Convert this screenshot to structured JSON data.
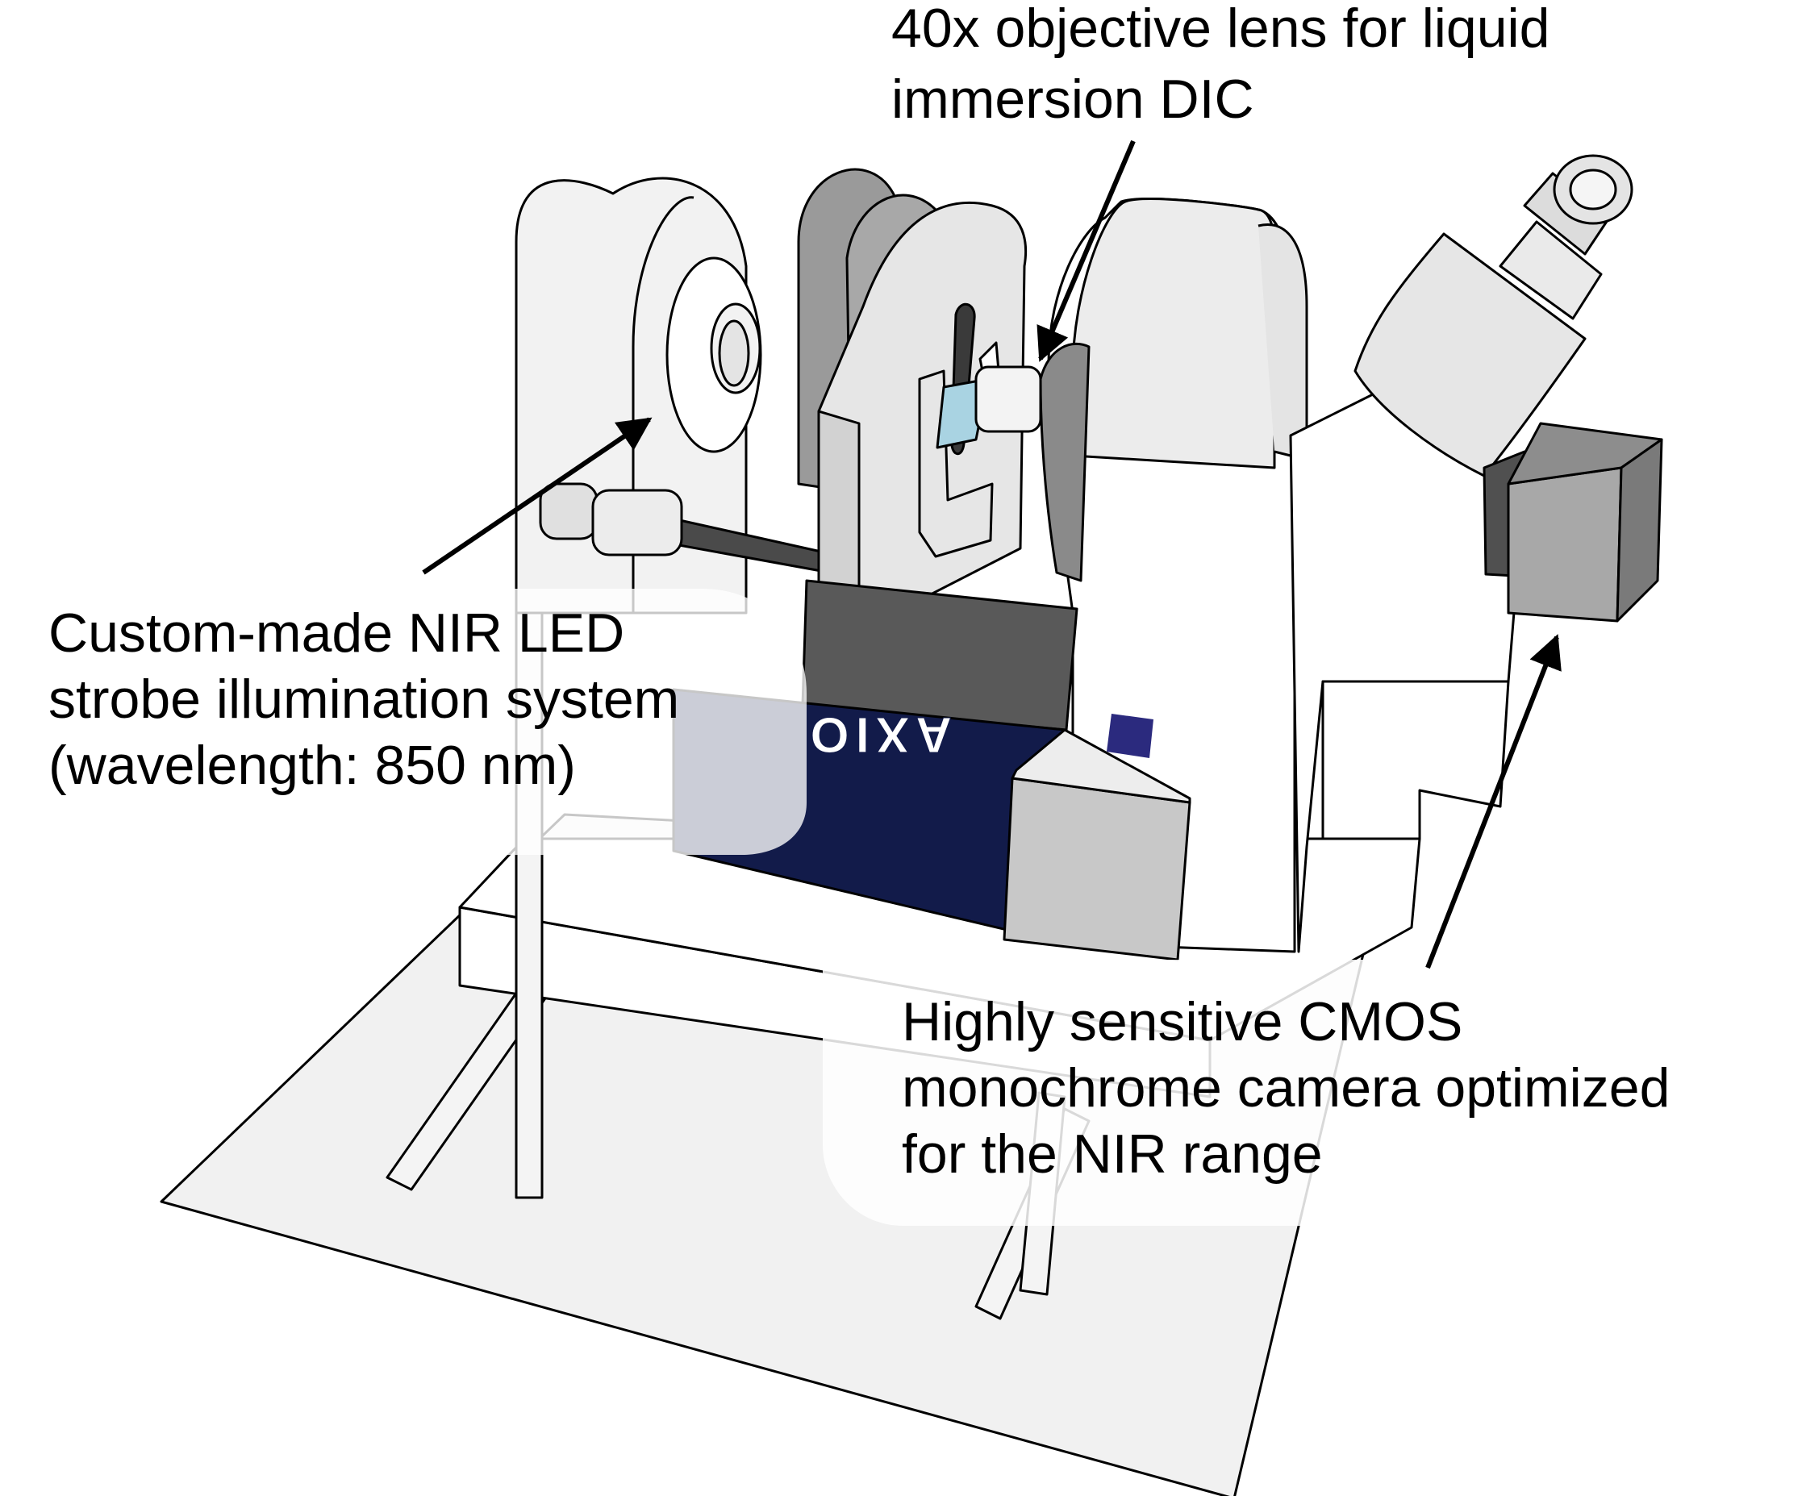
{
  "callouts": {
    "objective": {
      "line1": "40x objective lens for liquid",
      "line2": "immersion DIC"
    },
    "led": {
      "line1": "Custom-made NIR LED",
      "line2": "strobe illumination system",
      "line3": "(wavelength: 850 nm)"
    },
    "camera": {
      "line1": "Highly sensitive CMOS",
      "line2": "monochrome camera optimized",
      "line3": "for the NIR range"
    }
  },
  "microscope": {
    "brand_text": "AXIO"
  },
  "colors": {
    "outline": "#000000",
    "light_gray": "#eeeeee",
    "mid_gray": "#c8c8c8",
    "dark_gray": "#5a5a5a",
    "navy": "#121b4a",
    "logo_blue": "#2b2a7e",
    "slide_blue": "#a9d3e2",
    "baseplate": "#f1f1f1"
  },
  "icons": {
    "arrow": "arrowhead-triangle"
  }
}
